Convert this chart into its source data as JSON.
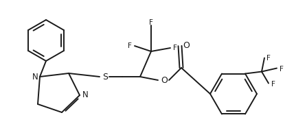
{
  "background_color": "#ffffff",
  "line_color": "#1a1a1a",
  "line_width": 1.4,
  "font_size": 7.5,
  "figsize": [
    4.47,
    2.01
  ],
  "dpi": 100,
  "xlim": [
    0,
    447
  ],
  "ylim": [
    0,
    201
  ]
}
